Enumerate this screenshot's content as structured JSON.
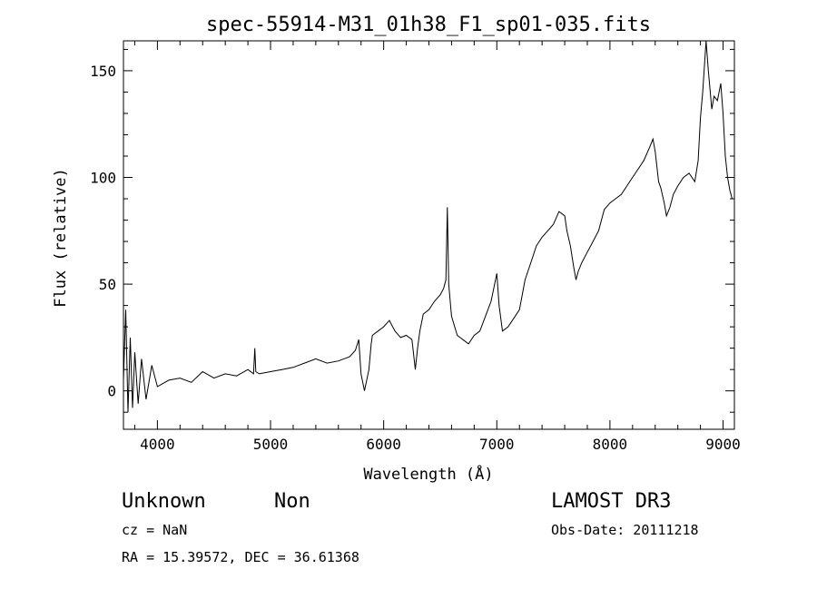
{
  "title": "spec-55914-M31_01h38_F1_sp01-035.fits",
  "footer": {
    "class_label": "Unknown",
    "subclass_label": "Non",
    "survey": "LAMOST DR3",
    "cz": "cz = NaN",
    "obs_date": "Obs-Date: 20111218",
    "radec": "RA =  15.39572, DEC =  36.61368"
  },
  "chart_data": {
    "type": "line",
    "xlabel": "Wavelength (Å)",
    "ylabel": "Flux (relative)",
    "xlim": [
      3700,
      9100
    ],
    "ylim": [
      -18,
      164
    ],
    "xticks": [
      "4000",
      "5000",
      "6000",
      "7000",
      "8000",
      "9000"
    ],
    "yticks": [
      "0",
      "50",
      "100",
      "150"
    ],
    "grid": false,
    "series": [
      {
        "x": [
          3700,
          3720,
          3740,
          3760,
          3780,
          3800,
          3830,
          3860,
          3900,
          3950,
          4000,
          4100,
          4200,
          4300,
          4400,
          4500,
          4600,
          4700,
          4800,
          4850,
          4861,
          4870,
          4900,
          5000,
          5100,
          5200,
          5300,
          5400,
          5500,
          5600,
          5700,
          5750,
          5780,
          5800,
          5830,
          5870,
          5890,
          5900,
          5950,
          6000,
          6050,
          6100,
          6150,
          6200,
          6250,
          6280,
          6300,
          6320,
          6350,
          6400,
          6450,
          6500,
          6530,
          6550,
          6563,
          6575,
          6600,
          6650,
          6700,
          6750,
          6800,
          6850,
          6900,
          6950,
          7000,
          7020,
          7050,
          7100,
          7150,
          7200,
          7250,
          7300,
          7350,
          7400,
          7450,
          7500,
          7550,
          7600,
          7620,
          7650,
          7680,
          7700,
          7720,
          7750,
          7800,
          7850,
          7900,
          7950,
          8000,
          8050,
          8100,
          8150,
          8200,
          8250,
          8300,
          8350,
          8380,
          8400,
          8430,
          8450,
          8480,
          8500,
          8530,
          8560,
          8600,
          8650,
          8700,
          8750,
          8780,
          8800,
          8820,
          8850,
          8870,
          8900,
          8920,
          8950,
          8980,
          9000,
          9020,
          9040,
          9060,
          9080
        ],
        "y": [
          5,
          38,
          -10,
          25,
          -8,
          18,
          -6,
          15,
          -4,
          12,
          2,
          5,
          6,
          4,
          9,
          6,
          8,
          7,
          10,
          8,
          20,
          9,
          8,
          9,
          10,
          11,
          13,
          15,
          13,
          14,
          16,
          19,
          24,
          8,
          0,
          10,
          22,
          26,
          28,
          30,
          33,
          28,
          25,
          26,
          24,
          10,
          20,
          28,
          36,
          38,
          42,
          45,
          48,
          52,
          86,
          50,
          35,
          26,
          24,
          22,
          26,
          28,
          35,
          42,
          55,
          40,
          28,
          30,
          34,
          38,
          52,
          60,
          68,
          72,
          75,
          78,
          84,
          82,
          75,
          68,
          58,
          52,
          56,
          60,
          65,
          70,
          75,
          85,
          88,
          90,
          92,
          96,
          100,
          104,
          108,
          114,
          118,
          112,
          98,
          95,
          88,
          82,
          86,
          92,
          96,
          100,
          102,
          98,
          108,
          128,
          140,
          164,
          150,
          132,
          138,
          136,
          144,
          130,
          110,
          100,
          94,
          90
        ]
      }
    ]
  }
}
